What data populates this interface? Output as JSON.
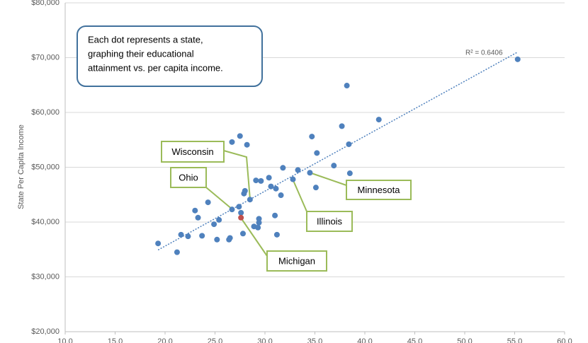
{
  "chart_data": {
    "type": "scatter",
    "y_label": "State Per Capita Income",
    "xlim": [
      10,
      60
    ],
    "xticks": [
      {
        "value": 10,
        "label": "10.0"
      },
      {
        "value": 15,
        "label": "15.0"
      },
      {
        "value": 20,
        "label": "20.0"
      },
      {
        "value": 25,
        "label": "25.0"
      },
      {
        "value": 30,
        "label": "30.0"
      },
      {
        "value": 35,
        "label": "35.0"
      },
      {
        "value": 40,
        "label": "40.0"
      },
      {
        "value": 45,
        "label": "45.0"
      },
      {
        "value": 50,
        "label": "50.0"
      },
      {
        "value": 55,
        "label": "55.0"
      },
      {
        "value": 60,
        "label": "60.0"
      }
    ],
    "ylim": [
      20000,
      80000
    ],
    "yticks": [
      {
        "value": 20000,
        "label": "$20,000"
      },
      {
        "value": 30000,
        "label": "$30,000"
      },
      {
        "value": 40000,
        "label": "$40,000"
      },
      {
        "value": 50000,
        "label": "$50,000"
      },
      {
        "value": 60000,
        "label": "$60,000"
      },
      {
        "value": 70000,
        "label": "$70,000"
      },
      {
        "value": 80000,
        "label": "$80,000"
      }
    ],
    "grid": true,
    "trendline": true,
    "r2_label": "R² = 0.6406",
    "series": [
      {
        "color": "#4f81bd",
        "x": [
          19.3,
          21.2,
          21.6,
          22.3,
          23.0,
          23.3,
          23.7,
          24.3,
          24.9,
          25.2,
          25.4,
          26.4,
          26.5,
          26.7,
          26.7,
          27.4,
          27.5,
          27.6,
          27.8,
          27.9,
          28.0,
          28.2,
          28.5,
          28.9,
          29.1,
          29.3,
          29.4,
          29.4,
          29.6,
          30.4,
          30.6,
          31.0,
          31.1,
          31.2,
          31.6,
          31.8,
          32.8,
          33.3,
          34.5,
          34.7,
          35.1,
          35.2,
          36.9,
          37.7,
          38.2,
          38.4,
          38.5,
          41.4,
          55.3
        ],
        "y": [
          36100,
          34500,
          37700,
          37400,
          42100,
          40800,
          37500,
          43600,
          39600,
          36800,
          40400,
          36800,
          37100,
          42300,
          54600,
          42800,
          55700,
          41700,
          37900,
          45200,
          45700,
          54100,
          44100,
          39200,
          47600,
          39000,
          39900,
          40600,
          47500,
          48100,
          46500,
          41200,
          46100,
          37700,
          44900,
          49900,
          47800,
          49500,
          49000,
          55600,
          46300,
          52600,
          50300,
          57500,
          64900,
          54200,
          48900,
          58700,
          69700
        ]
      },
      {
        "color": "#c0504d",
        "x": [
          27.6
        ],
        "y": [
          40800
        ]
      }
    ],
    "note_lines": [
      "Each dot represents a state,",
      "graphing their educational",
      "attainment vs. per capita income."
    ],
    "callouts": [
      "Wisconsin",
      "Ohio",
      "Minnesota",
      "Illinois",
      "Michigan"
    ]
  }
}
